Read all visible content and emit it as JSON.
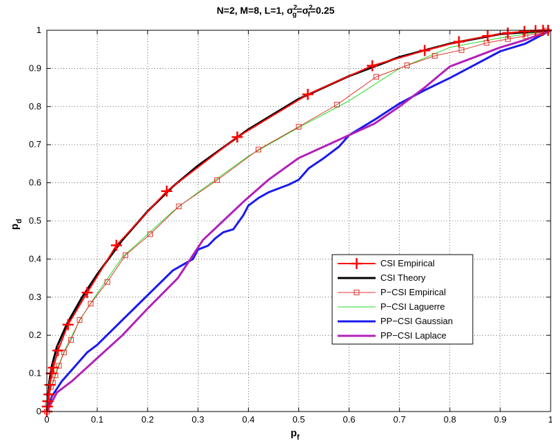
{
  "chart_data": {
    "type": "line",
    "title": "N=2, M=8, L=1, σg2=σf2=0.25",
    "title_parts": {
      "prefix": "N=2, M=8, L=1, ",
      "sigma": "σ",
      "g_sub": "g",
      "f_sub": "f",
      "sup": "2",
      "eq": "=",
      "value": "=0.25"
    },
    "xlabel": {
      "main": "p",
      "sub": "f"
    },
    "ylabel": {
      "main": "p",
      "sub": "d"
    },
    "xlim": [
      0,
      1
    ],
    "ylim": [
      0,
      1
    ],
    "xticks": [
      "0",
      "0.1",
      "0.2",
      "0.3",
      "0.4",
      "0.5",
      "0.6",
      "0.7",
      "0.8",
      "0.9",
      "1"
    ],
    "yticks": [
      "0",
      "0.1",
      "0.2",
      "0.3",
      "0.4",
      "0.5",
      "0.6",
      "0.7",
      "0.8",
      "0.9",
      "1"
    ],
    "grid": true,
    "legend_position": "right-center",
    "series": [
      {
        "name": "CSI Empirical",
        "color": "#ff0000",
        "marker": "plus",
        "x": [
          0,
          0.001,
          0.002,
          0.004,
          0.006,
          0.009,
          0.013,
          0.022,
          0.042,
          0.08,
          0.138,
          0.238,
          0.378,
          0.518,
          0.646,
          0.75,
          0.818,
          0.875,
          0.915,
          0.948,
          0.97,
          0.985,
          0.995
        ],
        "y": [
          0,
          0.013,
          0.027,
          0.045,
          0.07,
          0.1,
          0.115,
          0.16,
          0.228,
          0.312,
          0.436,
          0.578,
          0.72,
          0.832,
          0.907,
          0.947,
          0.97,
          0.985,
          0.993,
          0.997,
          0.999,
          1.0,
          1.0
        ]
      },
      {
        "name": "CSI Theory",
        "color": "#000000",
        "x": [
          0,
          0.005,
          0.01,
          0.02,
          0.04,
          0.07,
          0.1,
          0.15,
          0.2,
          0.25,
          0.3,
          0.4,
          0.5,
          0.6,
          0.7,
          0.8,
          0.9,
          1.0
        ],
        "y": [
          0,
          0.08,
          0.12,
          0.17,
          0.23,
          0.3,
          0.36,
          0.45,
          0.525,
          0.59,
          0.645,
          0.74,
          0.82,
          0.88,
          0.93,
          0.965,
          0.99,
          1.0
        ]
      },
      {
        "name": "P−CSI Empirical",
        "color": "#e0302a",
        "marker": "square",
        "x": [
          0,
          0.002,
          0.005,
          0.008,
          0.012,
          0.017,
          0.024,
          0.034,
          0.048,
          0.065,
          0.087,
          0.12,
          0.156,
          0.205,
          0.262,
          0.338,
          0.42,
          0.5,
          0.576,
          0.654,
          0.715,
          0.77,
          0.823,
          0.873,
          0.915,
          0.95,
          0.975,
          0.992
        ],
        "y": [
          0,
          0.02,
          0.04,
          0.065,
          0.075,
          0.095,
          0.12,
          0.155,
          0.188,
          0.24,
          0.283,
          0.34,
          0.41,
          0.465,
          0.538,
          0.607,
          0.687,
          0.747,
          0.805,
          0.878,
          0.908,
          0.933,
          0.948,
          0.967,
          0.977,
          0.985,
          0.993,
          0.999
        ]
      },
      {
        "name": "P−CSI Laguerre",
        "color": "#22dd22",
        "x": [
          0,
          0.005,
          0.01,
          0.02,
          0.035,
          0.05,
          0.07,
          0.1,
          0.15,
          0.2,
          0.25,
          0.3,
          0.4,
          0.5,
          0.6,
          0.7,
          0.8,
          0.9,
          1.0
        ],
        "y": [
          0,
          0.045,
          0.07,
          0.11,
          0.16,
          0.2,
          0.25,
          0.31,
          0.405,
          0.465,
          0.525,
          0.575,
          0.67,
          0.745,
          0.815,
          0.9,
          0.955,
          0.98,
          1.0
        ]
      },
      {
        "name": "PP−CSI Gaussian",
        "color": "#1a1aee",
        "x": [
          0,
          0.01,
          0.03,
          0.05,
          0.08,
          0.1,
          0.15,
          0.2,
          0.25,
          0.27,
          0.29,
          0.3,
          0.31,
          0.32,
          0.335,
          0.35,
          0.37,
          0.39,
          0.4,
          0.42,
          0.44,
          0.46,
          0.48,
          0.5,
          0.52,
          0.55,
          0.58,
          0.6,
          0.65,
          0.7,
          0.75,
          0.8,
          0.85,
          0.9,
          0.95,
          1.0
        ],
        "y": [
          0,
          0.04,
          0.08,
          0.11,
          0.155,
          0.175,
          0.24,
          0.305,
          0.37,
          0.385,
          0.4,
          0.425,
          0.43,
          0.435,
          0.455,
          0.47,
          0.478,
          0.515,
          0.54,
          0.56,
          0.575,
          0.585,
          0.595,
          0.608,
          0.638,
          0.665,
          0.695,
          0.725,
          0.765,
          0.808,
          0.843,
          0.875,
          0.91,
          0.945,
          0.965,
          1.0
        ]
      },
      {
        "name": "PP−CSI Laplace",
        "color": "#b020b8",
        "x": [
          0,
          0.02,
          0.05,
          0.1,
          0.15,
          0.2,
          0.26,
          0.285,
          0.31,
          0.35,
          0.39,
          0.44,
          0.5,
          0.55,
          0.6,
          0.65,
          0.7,
          0.75,
          0.8,
          0.85,
          0.9,
          0.95,
          1.0
        ],
        "y": [
          0,
          0.05,
          0.08,
          0.14,
          0.2,
          0.27,
          0.35,
          0.4,
          0.45,
          0.5,
          0.55,
          0.608,
          0.665,
          0.695,
          0.725,
          0.755,
          0.8,
          0.85,
          0.905,
          0.93,
          0.955,
          0.975,
          1.0
        ]
      }
    ]
  }
}
